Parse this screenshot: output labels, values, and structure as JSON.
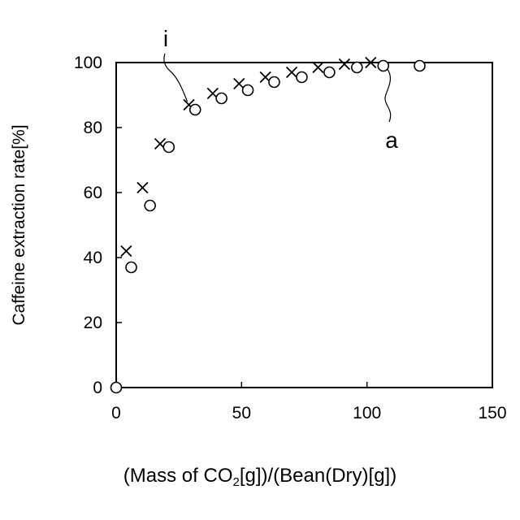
{
  "chart_data": {
    "type": "scatter",
    "title": "",
    "ylabel": "Caffeine extraction rate[%]",
    "xlabel": {
      "pre": "(Mass of CO",
      "sub": "2",
      "post": "[g])/(Bean(Dry)[g])"
    },
    "xlim": [
      0,
      150
    ],
    "ylim": [
      0,
      100
    ],
    "x_ticks": [
      0,
      50,
      100,
      150
    ],
    "y_ticks": [
      0,
      20,
      40,
      60,
      80,
      100
    ],
    "grid": false,
    "series": [
      {
        "marker": "cross",
        "label": "i",
        "points": [
          [
            4,
            42
          ],
          [
            10.5,
            61.5
          ],
          [
            17.5,
            75
          ],
          [
            29,
            87
          ],
          [
            38.5,
            90.5
          ],
          [
            49,
            93.5
          ],
          [
            59.5,
            95.5
          ],
          [
            70,
            97
          ],
          [
            80.5,
            98.5
          ],
          [
            91,
            99.5
          ],
          [
            101.5,
            100
          ]
        ]
      },
      {
        "marker": "circle",
        "label": "a",
        "points": [
          [
            0,
            0
          ],
          [
            6,
            37
          ],
          [
            13.5,
            56
          ],
          [
            21,
            74
          ],
          [
            31.5,
            85.5
          ],
          [
            42,
            89
          ],
          [
            52.5,
            91.5
          ],
          [
            63,
            94
          ],
          [
            74,
            95.5
          ],
          [
            85,
            97
          ],
          [
            96,
            98.5
          ],
          [
            106.5,
            99
          ],
          [
            121,
            99
          ]
        ]
      }
    ]
  }
}
